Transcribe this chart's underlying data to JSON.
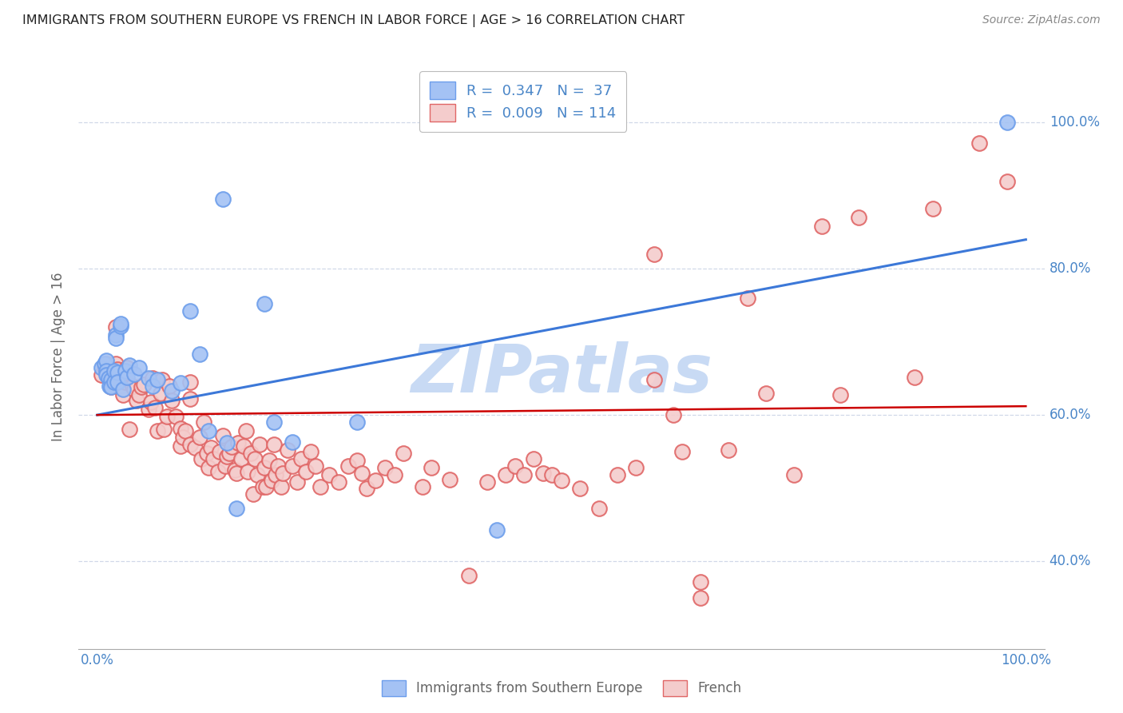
{
  "title": "IMMIGRANTS FROM SOUTHERN EUROPE VS FRENCH IN LABOR FORCE | AGE > 16 CORRELATION CHART",
  "source": "Source: ZipAtlas.com",
  "ylabel": "In Labor Force | Age > 16",
  "legend_blue_r": "0.347",
  "legend_blue_n": "37",
  "legend_pink_r": "0.009",
  "legend_pink_n": "114",
  "legend_blue_label": "Immigrants from Southern Europe",
  "legend_pink_label": "French",
  "blue_color": "#a4c2f4",
  "blue_edge_color": "#6d9eeb",
  "pink_color": "#f4cccc",
  "pink_edge_color": "#e06666",
  "blue_line_color": "#3c78d8",
  "pink_line_color": "#cc0000",
  "tick_color": "#4a86c8",
  "label_color": "#666666",
  "title_color": "#222222",
  "source_color": "#888888",
  "blue_scatter": [
    [
      0.005,
      0.665
    ],
    [
      0.008,
      0.67
    ],
    [
      0.01,
      0.675
    ],
    [
      0.01,
      0.66
    ],
    [
      0.01,
      0.655
    ],
    [
      0.012,
      0.65
    ],
    [
      0.013,
      0.64
    ],
    [
      0.015,
      0.648
    ],
    [
      0.015,
      0.638
    ],
    [
      0.018,
      0.66
    ],
    [
      0.018,
      0.645
    ],
    [
      0.02,
      0.71
    ],
    [
      0.02,
      0.705
    ],
    [
      0.022,
      0.658
    ],
    [
      0.022,
      0.645
    ],
    [
      0.025,
      0.722
    ],
    [
      0.025,
      0.725
    ],
    [
      0.028,
      0.635
    ],
    [
      0.03,
      0.66
    ],
    [
      0.032,
      0.652
    ],
    [
      0.035,
      0.668
    ],
    [
      0.04,
      0.656
    ],
    [
      0.045,
      0.665
    ],
    [
      0.055,
      0.65
    ],
    [
      0.06,
      0.64
    ],
    [
      0.065,
      0.648
    ],
    [
      0.08,
      0.633
    ],
    [
      0.09,
      0.644
    ],
    [
      0.1,
      0.742
    ],
    [
      0.11,
      0.683
    ],
    [
      0.12,
      0.578
    ],
    [
      0.135,
      0.895
    ],
    [
      0.14,
      0.562
    ],
    [
      0.15,
      0.472
    ],
    [
      0.18,
      0.752
    ],
    [
      0.19,
      0.59
    ],
    [
      0.21,
      0.563
    ],
    [
      0.28,
      0.59
    ],
    [
      0.43,
      0.443
    ],
    [
      0.98,
      1.0
    ]
  ],
  "pink_scatter": [
    [
      0.005,
      0.655
    ],
    [
      0.008,
      0.665
    ],
    [
      0.01,
      0.67
    ],
    [
      0.012,
      0.66
    ],
    [
      0.013,
      0.648
    ],
    [
      0.015,
      0.638
    ],
    [
      0.018,
      0.65
    ],
    [
      0.018,
      0.645
    ],
    [
      0.02,
      0.67
    ],
    [
      0.02,
      0.72
    ],
    [
      0.02,
      0.655
    ],
    [
      0.022,
      0.662
    ],
    [
      0.025,
      0.64
    ],
    [
      0.025,
      0.65
    ],
    [
      0.028,
      0.628
    ],
    [
      0.03,
      0.645
    ],
    [
      0.03,
      0.658
    ],
    [
      0.032,
      0.665
    ],
    [
      0.035,
      0.58
    ],
    [
      0.038,
      0.64
    ],
    [
      0.04,
      0.635
    ],
    [
      0.042,
      0.62
    ],
    [
      0.045,
      0.628
    ],
    [
      0.048,
      0.638
    ],
    [
      0.05,
      0.642
    ],
    [
      0.055,
      0.608
    ],
    [
      0.058,
      0.618
    ],
    [
      0.06,
      0.65
    ],
    [
      0.062,
      0.61
    ],
    [
      0.065,
      0.578
    ],
    [
      0.068,
      0.63
    ],
    [
      0.07,
      0.648
    ],
    [
      0.072,
      0.58
    ],
    [
      0.075,
      0.598
    ],
    [
      0.078,
      0.64
    ],
    [
      0.08,
      0.62
    ],
    [
      0.085,
      0.598
    ],
    [
      0.09,
      0.582
    ],
    [
      0.09,
      0.558
    ],
    [
      0.092,
      0.57
    ],
    [
      0.095,
      0.578
    ],
    [
      0.1,
      0.645
    ],
    [
      0.1,
      0.56
    ],
    [
      0.1,
      0.622
    ],
    [
      0.105,
      0.555
    ],
    [
      0.11,
      0.57
    ],
    [
      0.112,
      0.54
    ],
    [
      0.115,
      0.59
    ],
    [
      0.118,
      0.548
    ],
    [
      0.12,
      0.528
    ],
    [
      0.122,
      0.555
    ],
    [
      0.125,
      0.54
    ],
    [
      0.13,
      0.522
    ],
    [
      0.132,
      0.55
    ],
    [
      0.135,
      0.572
    ],
    [
      0.138,
      0.53
    ],
    [
      0.14,
      0.543
    ],
    [
      0.142,
      0.548
    ],
    [
      0.145,
      0.556
    ],
    [
      0.148,
      0.525
    ],
    [
      0.15,
      0.52
    ],
    [
      0.152,
      0.562
    ],
    [
      0.155,
      0.54
    ],
    [
      0.158,
      0.558
    ],
    [
      0.16,
      0.578
    ],
    [
      0.162,
      0.522
    ],
    [
      0.165,
      0.548
    ],
    [
      0.168,
      0.492
    ],
    [
      0.17,
      0.54
    ],
    [
      0.172,
      0.518
    ],
    [
      0.175,
      0.56
    ],
    [
      0.178,
      0.502
    ],
    [
      0.18,
      0.528
    ],
    [
      0.182,
      0.502
    ],
    [
      0.185,
      0.538
    ],
    [
      0.188,
      0.51
    ],
    [
      0.19,
      0.56
    ],
    [
      0.192,
      0.518
    ],
    [
      0.195,
      0.53
    ],
    [
      0.198,
      0.502
    ],
    [
      0.2,
      0.52
    ],
    [
      0.205,
      0.552
    ],
    [
      0.21,
      0.53
    ],
    [
      0.215,
      0.508
    ],
    [
      0.22,
      0.54
    ],
    [
      0.225,
      0.522
    ],
    [
      0.23,
      0.55
    ],
    [
      0.235,
      0.53
    ],
    [
      0.24,
      0.502
    ],
    [
      0.25,
      0.518
    ],
    [
      0.26,
      0.508
    ],
    [
      0.27,
      0.53
    ],
    [
      0.28,
      0.538
    ],
    [
      0.285,
      0.52
    ],
    [
      0.29,
      0.5
    ],
    [
      0.3,
      0.51
    ],
    [
      0.31,
      0.528
    ],
    [
      0.32,
      0.518
    ],
    [
      0.33,
      0.548
    ],
    [
      0.35,
      0.502
    ],
    [
      0.36,
      0.528
    ],
    [
      0.38,
      0.512
    ],
    [
      0.4,
      0.38
    ],
    [
      0.42,
      0.508
    ],
    [
      0.44,
      0.518
    ],
    [
      0.45,
      0.53
    ],
    [
      0.46,
      0.518
    ],
    [
      0.47,
      0.54
    ],
    [
      0.48,
      0.52
    ],
    [
      0.49,
      0.518
    ],
    [
      0.5,
      0.51
    ],
    [
      0.52,
      0.5
    ],
    [
      0.54,
      0.472
    ],
    [
      0.56,
      0.518
    ],
    [
      0.58,
      0.528
    ],
    [
      0.6,
      0.82
    ],
    [
      0.6,
      0.648
    ],
    [
      0.62,
      0.6
    ],
    [
      0.63,
      0.55
    ],
    [
      0.65,
      0.372
    ],
    [
      0.65,
      0.35
    ],
    [
      0.68,
      0.552
    ],
    [
      0.7,
      0.76
    ],
    [
      0.72,
      0.63
    ],
    [
      0.75,
      0.518
    ],
    [
      0.78,
      0.858
    ],
    [
      0.8,
      0.628
    ],
    [
      0.82,
      0.87
    ],
    [
      0.88,
      0.652
    ],
    [
      0.9,
      0.882
    ],
    [
      0.95,
      0.972
    ],
    [
      0.98,
      0.92
    ]
  ],
  "blue_trend": [
    0.0,
    1.0,
    0.6,
    0.84
  ],
  "pink_trend": [
    0.0,
    1.0,
    0.6,
    0.612
  ],
  "xlim": [
    -0.02,
    1.02
  ],
  "ylim": [
    0.28,
    1.08
  ],
  "yticks": [
    0.4,
    0.6,
    0.8,
    1.0
  ],
  "ytick_labels": [
    "40.0%",
    "60.0%",
    "80.0%",
    "100.0%"
  ],
  "xtick_show": [
    0.0,
    1.0
  ],
  "xtick_labels": [
    "0.0%",
    "100.0%"
  ],
  "watermark": "ZIPatlas",
  "watermark_color": "#c8daf4",
  "background_color": "#ffffff",
  "grid_color": "#d0d8e8",
  "scatter_size": 180,
  "scatter_lw": 1.5
}
